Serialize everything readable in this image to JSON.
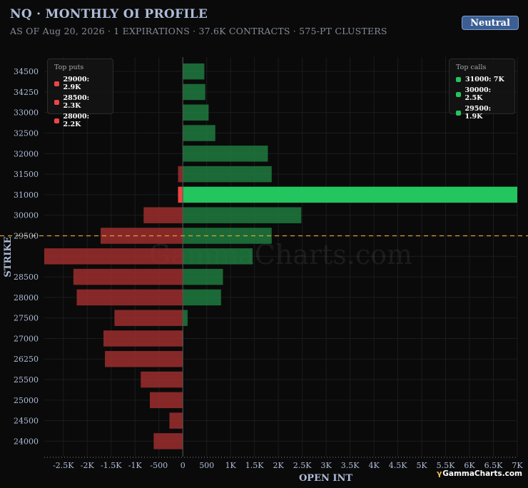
{
  "header": {
    "title": "NQ · MONTHLY OI PROFILE",
    "subtitle": "AS OF Aug 20, 2026 · 1 EXPIRATIONS · 37.6K CONTRACTS · 575-PT CLUSTERS",
    "badge": "Neutral"
  },
  "legend_puts": {
    "title": "Top puts",
    "items": [
      "29000: 2.9K",
      "28500: 2.3K",
      "28000: 2.2K"
    ]
  },
  "legend_calls": {
    "title": "Top calls",
    "items": [
      "31000: 7K",
      "30000: 2.5K",
      "29500: 1.9K"
    ]
  },
  "watermark": "GammaCharts.com",
  "brand": {
    "symbol": "γ",
    "text": "GammaCharts.com"
  },
  "colors": {
    "call": "#1e7a3e",
    "call_highlight": "#22c55e",
    "put": "#9e2e2e",
    "put_highlight": "#ef4444",
    "spot_line": "#e0a030",
    "background": "#0a0a0a",
    "grid": "#1c1c1c",
    "axis_text": "#aebcd8",
    "badge": "#3b5f94"
  },
  "chart_data": {
    "type": "bar",
    "orientation": "horizontal",
    "xlabel": "OPEN INT",
    "ylabel": "STRIKE",
    "xlim": [
      -2900,
      7000
    ],
    "x_ticks": [
      -2500,
      -2000,
      -1500,
      -1000,
      -500,
      0,
      500,
      1000,
      1500,
      2000,
      2500,
      3000,
      3500,
      4000,
      4500,
      5000,
      5500,
      6000,
      6500,
      7000
    ],
    "x_tick_labels": [
      "-2.5K",
      "-2K",
      "-1.5K",
      "-1K",
      "-500",
      "0",
      "500",
      "1K",
      "1.5K",
      "2K",
      "2.5K",
      "3K",
      "3.5K",
      "4K",
      "4.5K",
      "5K",
      "5.5K",
      "6K",
      "6.5K",
      "7K"
    ],
    "categories": [
      "34500",
      "34250",
      "33000",
      "32500",
      "32000",
      "31500",
      "31000",
      "30000",
      "29500",
      "29000",
      "28500",
      "28000",
      "27500",
      "27000",
      "26250",
      "25500",
      "25000",
      "24500",
      "24000"
    ],
    "category_labels": [
      "34500",
      "34250",
      "33000",
      "32500",
      "32000",
      "31500",
      "31000",
      "30000",
      "29500",
      "",
      "28500",
      "28000",
      "27500",
      "27000",
      "26250",
      "25500",
      "25000",
      "24500",
      "24000"
    ],
    "series": [
      {
        "name": "Calls",
        "values": [
          450,
          470,
          540,
          680,
          1780,
          1860,
          7000,
          2480,
          1860,
          1460,
          840,
          800,
          100,
          10,
          0,
          0,
          0,
          0,
          0
        ]
      },
      {
        "name": "Puts",
        "values": [
          0,
          0,
          0,
          0,
          0,
          -100,
          -100,
          -820,
          -1720,
          -2900,
          -2290,
          -2220,
          -1430,
          -1660,
          -1630,
          -880,
          -690,
          -280,
          -610
        ]
      }
    ],
    "highlight": {
      "calls": "31000",
      "puts": "31000"
    },
    "spot_level": "29500",
    "grid": true
  }
}
